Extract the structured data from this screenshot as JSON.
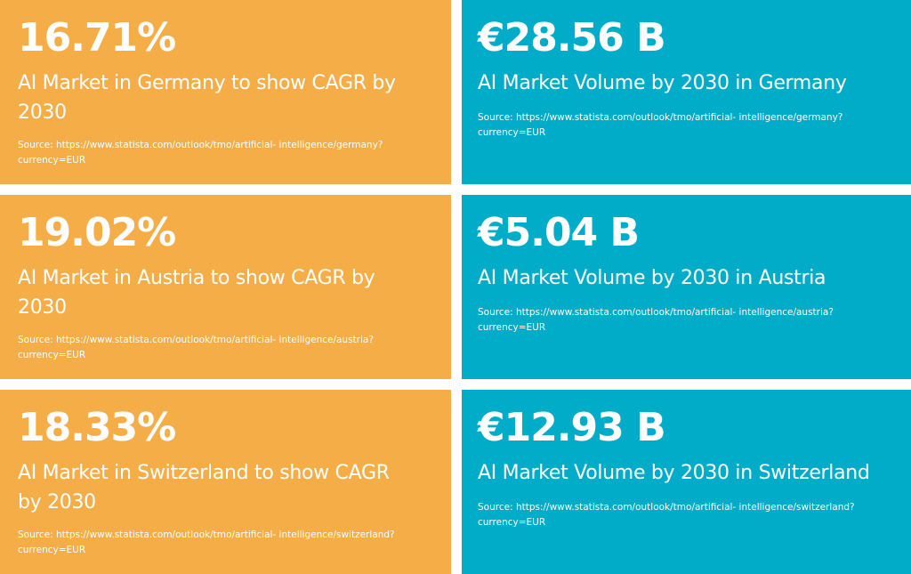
{
  "cards": [
    {
      "stat": "16.71%",
      "label": "AI Market in Germany to show CAGR by 2030",
      "source": "Source: https://www.statista.com/outlook/tmo/artificial- intelligence/germany? currency=EUR",
      "color": "#f5ae47"
    },
    {
      "stat": "€28.56 B",
      "label": "AI Market Volume by 2030 in Germany",
      "source": "Source: https://www.statista.com/outlook/tmo/artificial- intelligence/germany? currency=EUR",
      "color": "#00acc8"
    },
    {
      "stat": "19.02%",
      "label": "AI Market in Austria to show CAGR by 2030",
      "source": "Source: https://www.statista.com/outlook/tmo/artificial- intelligence/austria? currency=EUR",
      "color": "#f5ae47"
    },
    {
      "stat": "€5.04 B",
      "label": "AI Market Volume by 2030 in Austria",
      "source": "Source: https://www.statista.com/outlook/tmo/artificial- intelligence/austria? currency=EUR",
      "color": "#00acc8"
    },
    {
      "stat": "18.33%",
      "label": "AI Market in Switzerland to show CAGR by 2030",
      "source": "Source: https://www.statista.com/outlook/tmo/artificial- intelligence/switzerland? currency=EUR",
      "color": "#f5ae47"
    },
    {
      "stat": "€12.93 B",
      "label": "AI Market Volume by 2030 in Switzerland",
      "source": "Source: https://www.statista.com/outlook/tmo/artificial- intelligence/switzerland? currency=EUR",
      "color": "#00acc8"
    }
  ]
}
